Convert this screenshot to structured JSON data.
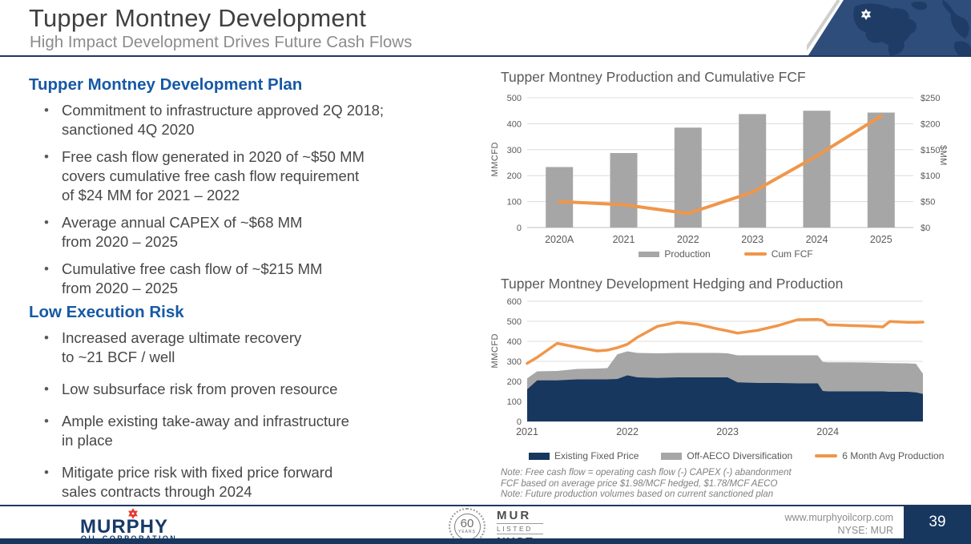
{
  "header": {
    "title": "Tupper Montney Development",
    "subtitle": "High Impact Development Drives Future Cash Flows"
  },
  "left": {
    "section1": {
      "heading": "Tupper Montney Development Plan",
      "bullets": [
        "Commitment to infrastructure approved 2Q 2018;\nsanctioned 4Q 2020",
        "Free cash flow generated in 2020 of ~$50 MM\ncovers cumulative free cash flow requirement\nof $24 MM for 2021 – 2022",
        "Average annual CAPEX of ~$68 MM\nfrom 2020 – 2025",
        "Cumulative free cash flow of ~$215 MM\nfrom 2020 – 2025"
      ]
    },
    "section2": {
      "heading": "Low Execution Risk",
      "bullets": [
        "Increased average ultimate recovery\nto ~21 BCF / well",
        "Low subsurface risk from proven resource",
        "Ample existing take-away and infrastructure\nin place",
        "Mitigate price risk with fixed price forward\nsales contracts through 2024"
      ]
    }
  },
  "chart_data": [
    {
      "type": "bar+line",
      "title": "Tupper Montney Production and Cumulative FCF",
      "categories": [
        "2020A",
        "2021",
        "2022",
        "2023",
        "2024",
        "2025"
      ],
      "series": [
        {
          "name": "Production",
          "type": "bar",
          "axis": "left",
          "values": [
            233,
            287,
            385,
            437,
            450,
            443
          ]
        },
        {
          "name": "Cum FCF",
          "type": "line",
          "axis": "right",
          "values": [
            50,
            44,
            27,
            68,
            138,
            215
          ]
        }
      ],
      "left_axis": {
        "label": "MMCFD",
        "min": 0,
        "max": 500,
        "step": 100,
        "prefix": ""
      },
      "right_axis": {
        "label": "$MM",
        "min": 0,
        "max": 250,
        "step": 50,
        "prefix": "$"
      },
      "grid": true,
      "legend_position": "bottom"
    },
    {
      "type": "area",
      "title": "Tupper Montney Development Hedging and Production",
      "x": [
        2021.0,
        2021.1,
        2021.3,
        2021.5,
        2021.7,
        2021.8,
        2021.9,
        2022.0,
        2022.1,
        2022.3,
        2022.5,
        2022.7,
        2022.9,
        2023.0,
        2023.1,
        2023.3,
        2023.5,
        2023.7,
        2023.9,
        2023.95,
        2024.0,
        2024.2,
        2024.4,
        2024.55,
        2024.62,
        2024.8,
        2024.88,
        2024.95
      ],
      "x_ticks": [
        2021,
        2022,
        2023,
        2024
      ],
      "series": [
        {
          "name": "Existing Fixed Price",
          "type": "area-stacked",
          "values": [
            160,
            205,
            205,
            210,
            210,
            210,
            212,
            230,
            220,
            217,
            220,
            220,
            220,
            220,
            195,
            192,
            192,
            190,
            190,
            152,
            150,
            150,
            150,
            150,
            148,
            148,
            145,
            137
          ]
        },
        {
          "name": "Off-AECO Diversification",
          "type": "area-stacked",
          "values": [
            55,
            45,
            47,
            52,
            54,
            56,
            123,
            120,
            122,
            123,
            122,
            122,
            122,
            120,
            135,
            138,
            138,
            140,
            140,
            145,
            145,
            145,
            144,
            142,
            143,
            142,
            143,
            101
          ]
        },
        {
          "name": "6 Month Avg Production",
          "type": "line",
          "values": [
            290,
            320,
            390,
            370,
            352,
            356,
            368,
            385,
            420,
            475,
            495,
            485,
            462,
            452,
            441,
            455,
            478,
            508,
            509,
            505,
            483,
            479,
            476,
            472,
            499,
            495,
            495,
            496
          ]
        }
      ],
      "y_axis": {
        "label": "MMCFD",
        "min": 0,
        "max": 600,
        "step": 100
      },
      "grid": true,
      "legend_position": "bottom"
    }
  ],
  "notes": [
    "Note: Free cash flow = operating cash flow (-) CAPEX (-) abandonment",
    "FCF based on average price $1.98/MCF hedged, $1.78/MCF AECO",
    "Note: Future production volumes based on current sanctioned plan"
  ],
  "footer": {
    "logo": {
      "name": "MURPHY",
      "sub": "OIL CORPORATION"
    },
    "badge": {
      "years": "60",
      "years_label": "YEARS",
      "ticker": "MUR",
      "listed": "LISTED",
      "exchange": "NYSE"
    },
    "website": "www.murphyoilcorp.com",
    "ticker": "NYSE: MUR",
    "page_number": "39"
  },
  "colors": {
    "navy_rule": "#1F3864",
    "navy_area": "#17375E",
    "heading_blue": "#1659A5",
    "bar_gray": "#A6A6A6",
    "orange": "#F0964A",
    "map_navy": "#2E4D7B",
    "map_land": "#1F3C67",
    "murphy_red": "#E8382D",
    "murphy_navy": "#173A67"
  }
}
